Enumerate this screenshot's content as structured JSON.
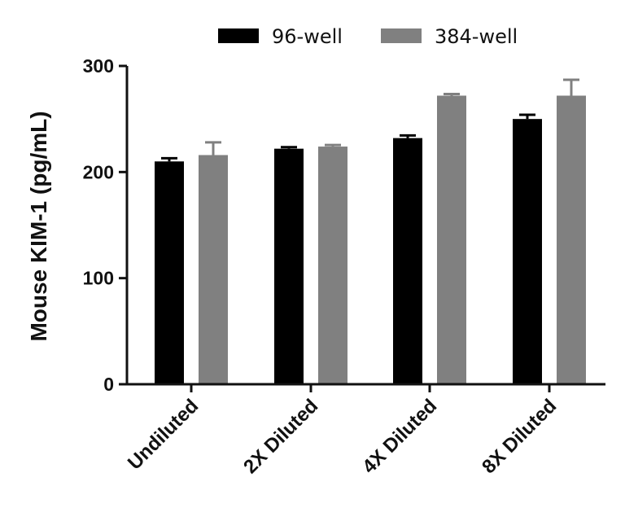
{
  "chart_data": {
    "type": "bar",
    "title": "",
    "xlabel": "",
    "ylabel": "Mouse KIM-1 (pg/mL)",
    "ylim": [
      0,
      300
    ],
    "yticks": [
      0,
      100,
      200,
      300
    ],
    "grid": false,
    "legend_position": "top-center",
    "categories": [
      "Undiluted",
      "2X Diluted",
      "4X Diluted",
      "8X Diluted"
    ],
    "series": [
      {
        "name": "96-well",
        "color": "#000000",
        "values": [
          210,
          222,
          232,
          250
        ],
        "errors": [
          3,
          1.5,
          2.5,
          4
        ]
      },
      {
        "name": "384-well",
        "color": "#808080",
        "values": [
          216,
          224,
          272,
          272
        ],
        "errors": [
          12,
          1.5,
          1.5,
          15
        ]
      }
    ]
  }
}
